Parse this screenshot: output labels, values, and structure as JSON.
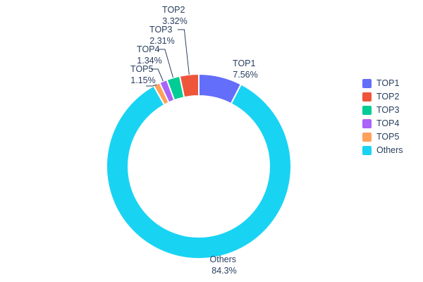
{
  "chart_data": {
    "type": "pie",
    "title": "",
    "hole": 0.76,
    "legend_position": "right",
    "text_color": "#2a3f5f",
    "slices": [
      {
        "label": "TOP1",
        "value": 7.56,
        "percent_label": "7.56%",
        "color": "#636EFA"
      },
      {
        "label": "TOP2",
        "value": 3.32,
        "percent_label": "3.32%",
        "color": "#EF553B"
      },
      {
        "label": "TOP3",
        "value": 2.31,
        "percent_label": "2.31%",
        "color": "#00CC96"
      },
      {
        "label": "TOP4",
        "value": 1.34,
        "percent_label": "1.34%",
        "color": "#AB63FA"
      },
      {
        "label": "TOP5",
        "value": 1.15,
        "percent_label": "1.15%",
        "color": "#FFA15A"
      },
      {
        "label": "Others",
        "value": 84.3,
        "percent_label": "84.3%",
        "color": "#19D3F3"
      }
    ],
    "clockwise_order": [
      "TOP1",
      "Others",
      "TOP5",
      "TOP4",
      "TOP3",
      "TOP2"
    ]
  },
  "legend": {
    "items": [
      {
        "label": "TOP1",
        "color": "#636EFA"
      },
      {
        "label": "TOP2",
        "color": "#EF553B"
      },
      {
        "label": "TOP3",
        "color": "#00CC96"
      },
      {
        "label": "TOP4",
        "color": "#AB63FA"
      },
      {
        "label": "TOP5",
        "color": "#FFA15A"
      },
      {
        "label": "Others",
        "color": "#19D3F3"
      }
    ]
  }
}
